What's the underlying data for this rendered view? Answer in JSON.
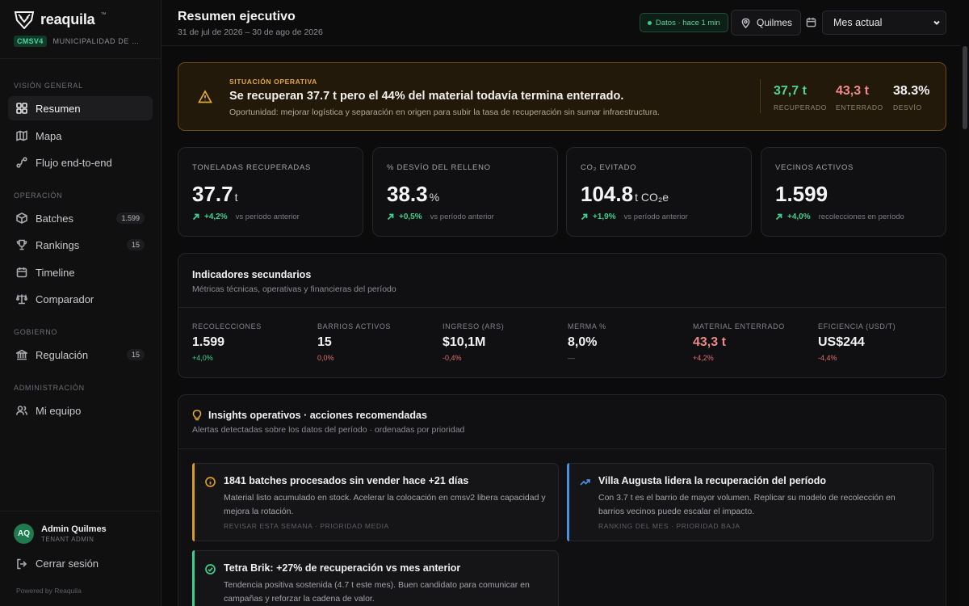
{
  "brand": {
    "name": "reaquila",
    "tm": "™",
    "tenant_code": "CMSV4",
    "tenant_name": "MUNICIPALIDAD DE QUILMES"
  },
  "sidebar": {
    "sections": [
      {
        "title": "VISIÓN GENERAL"
      },
      {
        "title": "OPERACIÓN"
      },
      {
        "title": "GOBIERNO"
      },
      {
        "title": "ADMINISTRACIÓN"
      }
    ],
    "items": [
      {
        "label": "Resumen",
        "icon": "grid-icon",
        "active": true
      },
      {
        "label": "Mapa",
        "icon": "map-icon"
      },
      {
        "label": "Flujo end-to-end",
        "icon": "route-icon"
      },
      {
        "label": "Batches",
        "icon": "box-icon",
        "count": "1.599"
      },
      {
        "label": "Rankings",
        "icon": "trophy-icon",
        "count": "15"
      },
      {
        "label": "Timeline",
        "icon": "calendar-icon"
      },
      {
        "label": "Comparador",
        "icon": "scale-icon"
      },
      {
        "label": "Regulación",
        "icon": "bank-icon",
        "count": "15"
      },
      {
        "label": "Mi equipo",
        "icon": "users-icon"
      }
    ],
    "user": {
      "initials": "AQ",
      "name": "Admin Quilmes",
      "role": "TENANT ADMIN"
    },
    "logout": "Cerrar sesión",
    "powered": "Powered by Reaquila"
  },
  "header": {
    "title": "Resumen ejecutivo",
    "range": "31 de jul de 2026 – 30 de ago de 2026",
    "live_badge": "Datos · hace 1 min",
    "location": "Quilmes",
    "period": "Mes actual"
  },
  "alert": {
    "kicker": "SITUACIÓN OPERATIVA",
    "title": "Se recuperan 37.7 t pero el 44% del material todavía termina enterrado.",
    "subtitle": "Oportunidad: mejorar logística y separación en origen para subir la tasa de recuperación sin sumar infraestructura.",
    "stats": [
      {
        "value": "37,7 t",
        "label": "RECUPERADO",
        "color": "#4fd39b"
      },
      {
        "value": "43,3 t",
        "label": "ENTERRADO",
        "color": "#f08a8a"
      },
      {
        "value": "38.3%",
        "label": "DESVÍO",
        "color": "#f2f2f3"
      }
    ]
  },
  "kpis": [
    {
      "label": "TONELADAS RECUPERADAS",
      "value": "37.7",
      "unit": "t",
      "delta": "+4,2%",
      "note": "vs período anterior"
    },
    {
      "label": "% DESVÍO DEL RELLENO",
      "value": "38.3",
      "unit": "%",
      "delta": "+0,5%",
      "note": "vs período anterior"
    },
    {
      "label": "CO₂ EVITADO",
      "value": "104.8",
      "unit": "t CO₂e",
      "delta": "+1,9%",
      "note": "vs período anterior"
    },
    {
      "label": "VECINOS ACTIVOS",
      "value": "1.599",
      "unit": "",
      "delta": "+4,0%",
      "note": "recolecciones en período"
    }
  ],
  "secondary": {
    "title": "Indicadores secundarios",
    "subtitle": "Métricas técnicas, operativas y financieras del período",
    "items": [
      {
        "label": "RECOLECCIONES",
        "value": "1.599",
        "delta": "+4,0%",
        "value_color": "#f2f2f3",
        "delta_color": "#3fcf8e"
      },
      {
        "label": "BARRIOS ACTIVOS",
        "value": "15",
        "delta": "0,0%",
        "value_color": "#f2f2f3",
        "delta_color": "#e07070"
      },
      {
        "label": "INGRESO (ARS)",
        "value": "$10,1M",
        "delta": "-0,4%",
        "value_color": "#f2f2f3",
        "delta_color": "#e07070"
      },
      {
        "label": "MERMA %",
        "value": "8,0%",
        "delta": "—",
        "value_color": "#f2f2f3",
        "delta_color": "#6f6f75"
      },
      {
        "label": "MATERIAL ENTERRADO",
        "value": "43,3 t",
        "delta": "+4,2%",
        "value_color": "#f08a8a",
        "delta_color": "#e07070"
      },
      {
        "label": "EFICIENCIA (USD/T)",
        "value": "US$244",
        "delta": "-4,4%",
        "value_color": "#f2f2f3",
        "delta_color": "#e07070"
      }
    ]
  },
  "insights": {
    "title": "Insights operativos · acciones recomendadas",
    "subtitle": "Alertas detectadas sobre los datos del período · ordenadas por prioridad",
    "cards": [
      {
        "title": "1841 batches procesados sin vender hace +21 días",
        "body": "Material listo acumulado en stock. Acelerar la colocación en cmsv2 libera capacidad y mejora la rotación.",
        "meta": "REVISAR ESTA SEMANA · PRIORIDAD MEDIA",
        "accent": "#d99a2b",
        "icon": "info-icon"
      },
      {
        "title": "Villa Augusta lidera la recuperación del período",
        "body": "Con 3.7 t es el barrio de mayor volumen. Replicar su modelo de recolección en barrios vecinos puede escalar el impacto.",
        "meta": "RANKING DEL MES · PRIORIDAD BAJA",
        "accent": "#4a8fe0",
        "icon": "trend-up-icon"
      },
      {
        "title": "Tetra Brik: +27% de recuperación vs mes anterior",
        "body": "Tendencia positiva sostenida (4.7 t este mes). Buen candidato para comunicar en campañas y reforzar la cadena de valor.",
        "meta": "",
        "accent": "#3fcf8e",
        "icon": "check-circle-icon"
      }
    ]
  }
}
